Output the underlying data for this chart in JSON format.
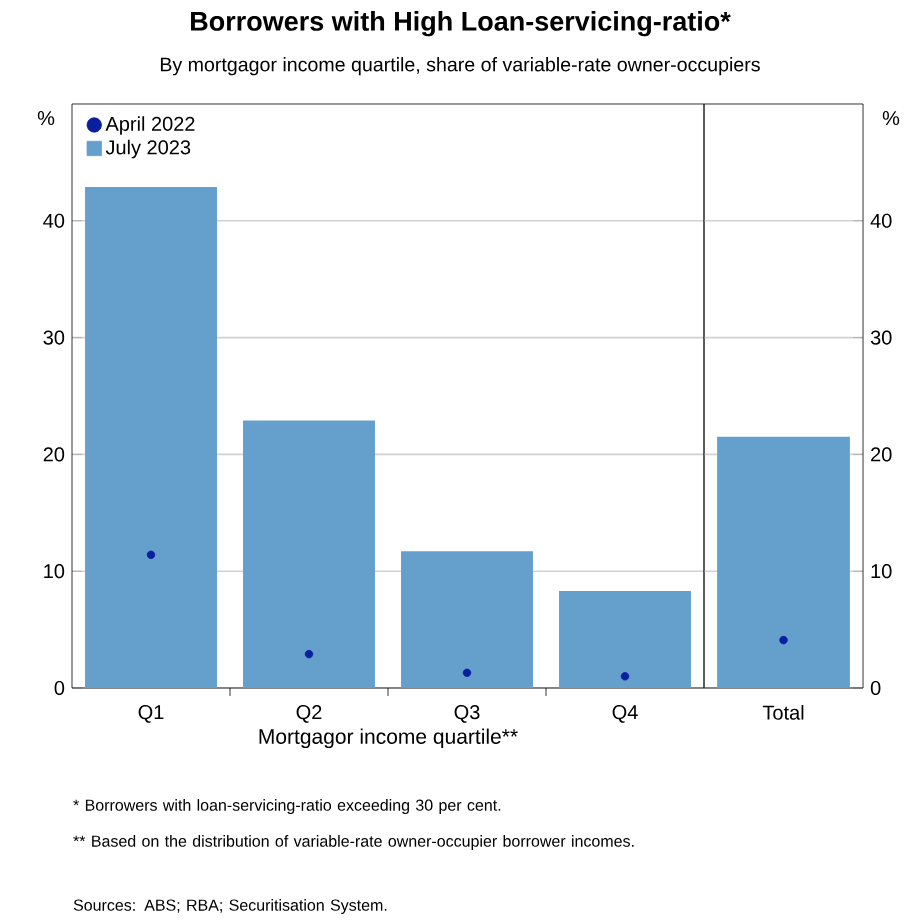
{
  "chart_data": [
    {
      "type": "bar",
      "title": "Borrowers with High Loan-servicing-ratio*",
      "subtitle": "By mortgagor income quartile, share of variable-rate owner-occupiers",
      "xlabel": "Mortgagor income quartile**",
      "ylabel": "%",
      "categories": [
        "Q1",
        "Q2",
        "Q3",
        "Q4"
      ],
      "series": [
        {
          "name": "April 2022",
          "type": "scatter",
          "color": "#0a1f9e",
          "values": [
            11.4,
            2.9,
            1.3,
            1.0
          ]
        },
        {
          "name": "July 2023",
          "color": "#659fcb",
          "values": [
            42.9,
            22.9,
            11.7,
            8.3
          ]
        }
      ],
      "ylim": [
        0,
        50
      ],
      "yticks": [
        0,
        10,
        20,
        30,
        40
      ],
      "grid": "y",
      "legend": "top left",
      "marker": "circle",
      "annotations": [
        "*     Borrowers with loan-servicing-ratio exceeding 30 per cent.",
        "**    Based on the distribution of variable-rate owner-occupier borrower incomes.",
        "Sources: ABS; RBA; Securitisation System."
      ]
    },
    {
      "type": "bar",
      "y2label": "%",
      "categories": [
        "Total"
      ],
      "series": [
        {
          "type": "scatter",
          "color": "#0a1f9e",
          "values": [
            4.1
          ],
          "axis": "y2"
        },
        {
          "color": "#659fcb",
          "values": [
            21.5
          ],
          "axis": "y2"
        }
      ],
      "y2lim": [
        0,
        50
      ],
      "y2ticks": [
        0,
        10,
        20,
        30,
        40
      ],
      "grid": "y",
      "marker": "circle"
    }
  ]
}
